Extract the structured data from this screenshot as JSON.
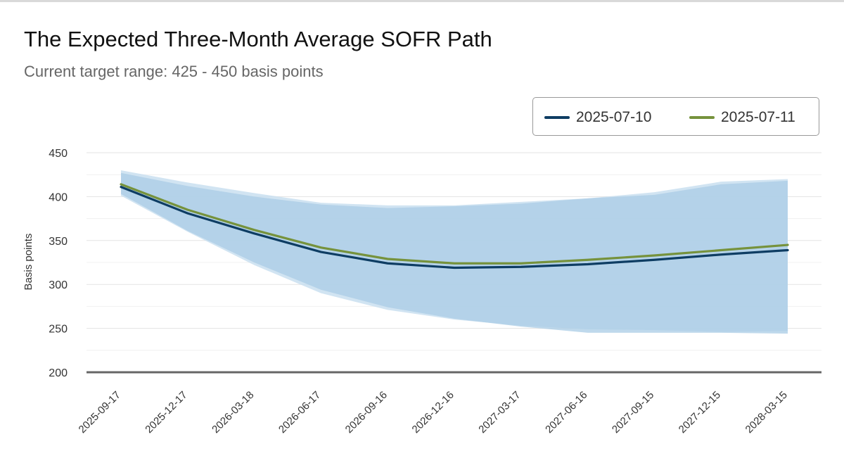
{
  "chart_data": {
    "type": "line",
    "title": "The Expected Three-Month Average SOFR Path",
    "subtitle": "Current target range: 425 - 450 basis points",
    "xlabel": "",
    "ylabel": "Basis points",
    "ylim": [
      200,
      450
    ],
    "yticks": [
      200,
      250,
      300,
      350,
      400,
      450
    ],
    "grid": true,
    "legend_position": "top-right",
    "categories": [
      "2025-09-17",
      "2025-12-17",
      "2026-03-18",
      "2026-06-17",
      "2026-09-16",
      "2026-12-16",
      "2027-03-17",
      "2027-06-16",
      "2027-09-15",
      "2027-12-15",
      "2028-03-15"
    ],
    "series": [
      {
        "name": "2025-07-10",
        "color": "#0e3d63",
        "values": [
          411,
          381,
          358,
          337,
          324,
          319,
          320,
          323,
          328,
          334,
          339
        ]
      },
      {
        "name": "2025-07-11",
        "color": "#76923c",
        "values": [
          414,
          385,
          362,
          342,
          329,
          324,
          324,
          328,
          333,
          339,
          345
        ]
      }
    ],
    "bands": [
      {
        "name": "2025-07-10 range",
        "color": "#c9dff0",
        "upper": [
          430,
          416,
          404,
          393,
          390,
          390,
          394,
          398,
          405,
          417,
          420
        ],
        "lower": [
          401,
          360,
          322,
          290,
          271,
          260,
          253,
          249,
          248,
          246,
          247
        ]
      },
      {
        "name": "2025-07-11 range",
        "color": "#a9cce6",
        "upper": [
          427,
          412,
          400,
          391,
          387,
          389,
          392,
          398,
          402,
          414,
          418
        ],
        "lower": [
          403,
          361,
          325,
          294,
          274,
          261,
          252,
          245,
          245,
          245,
          244
        ]
      }
    ]
  }
}
